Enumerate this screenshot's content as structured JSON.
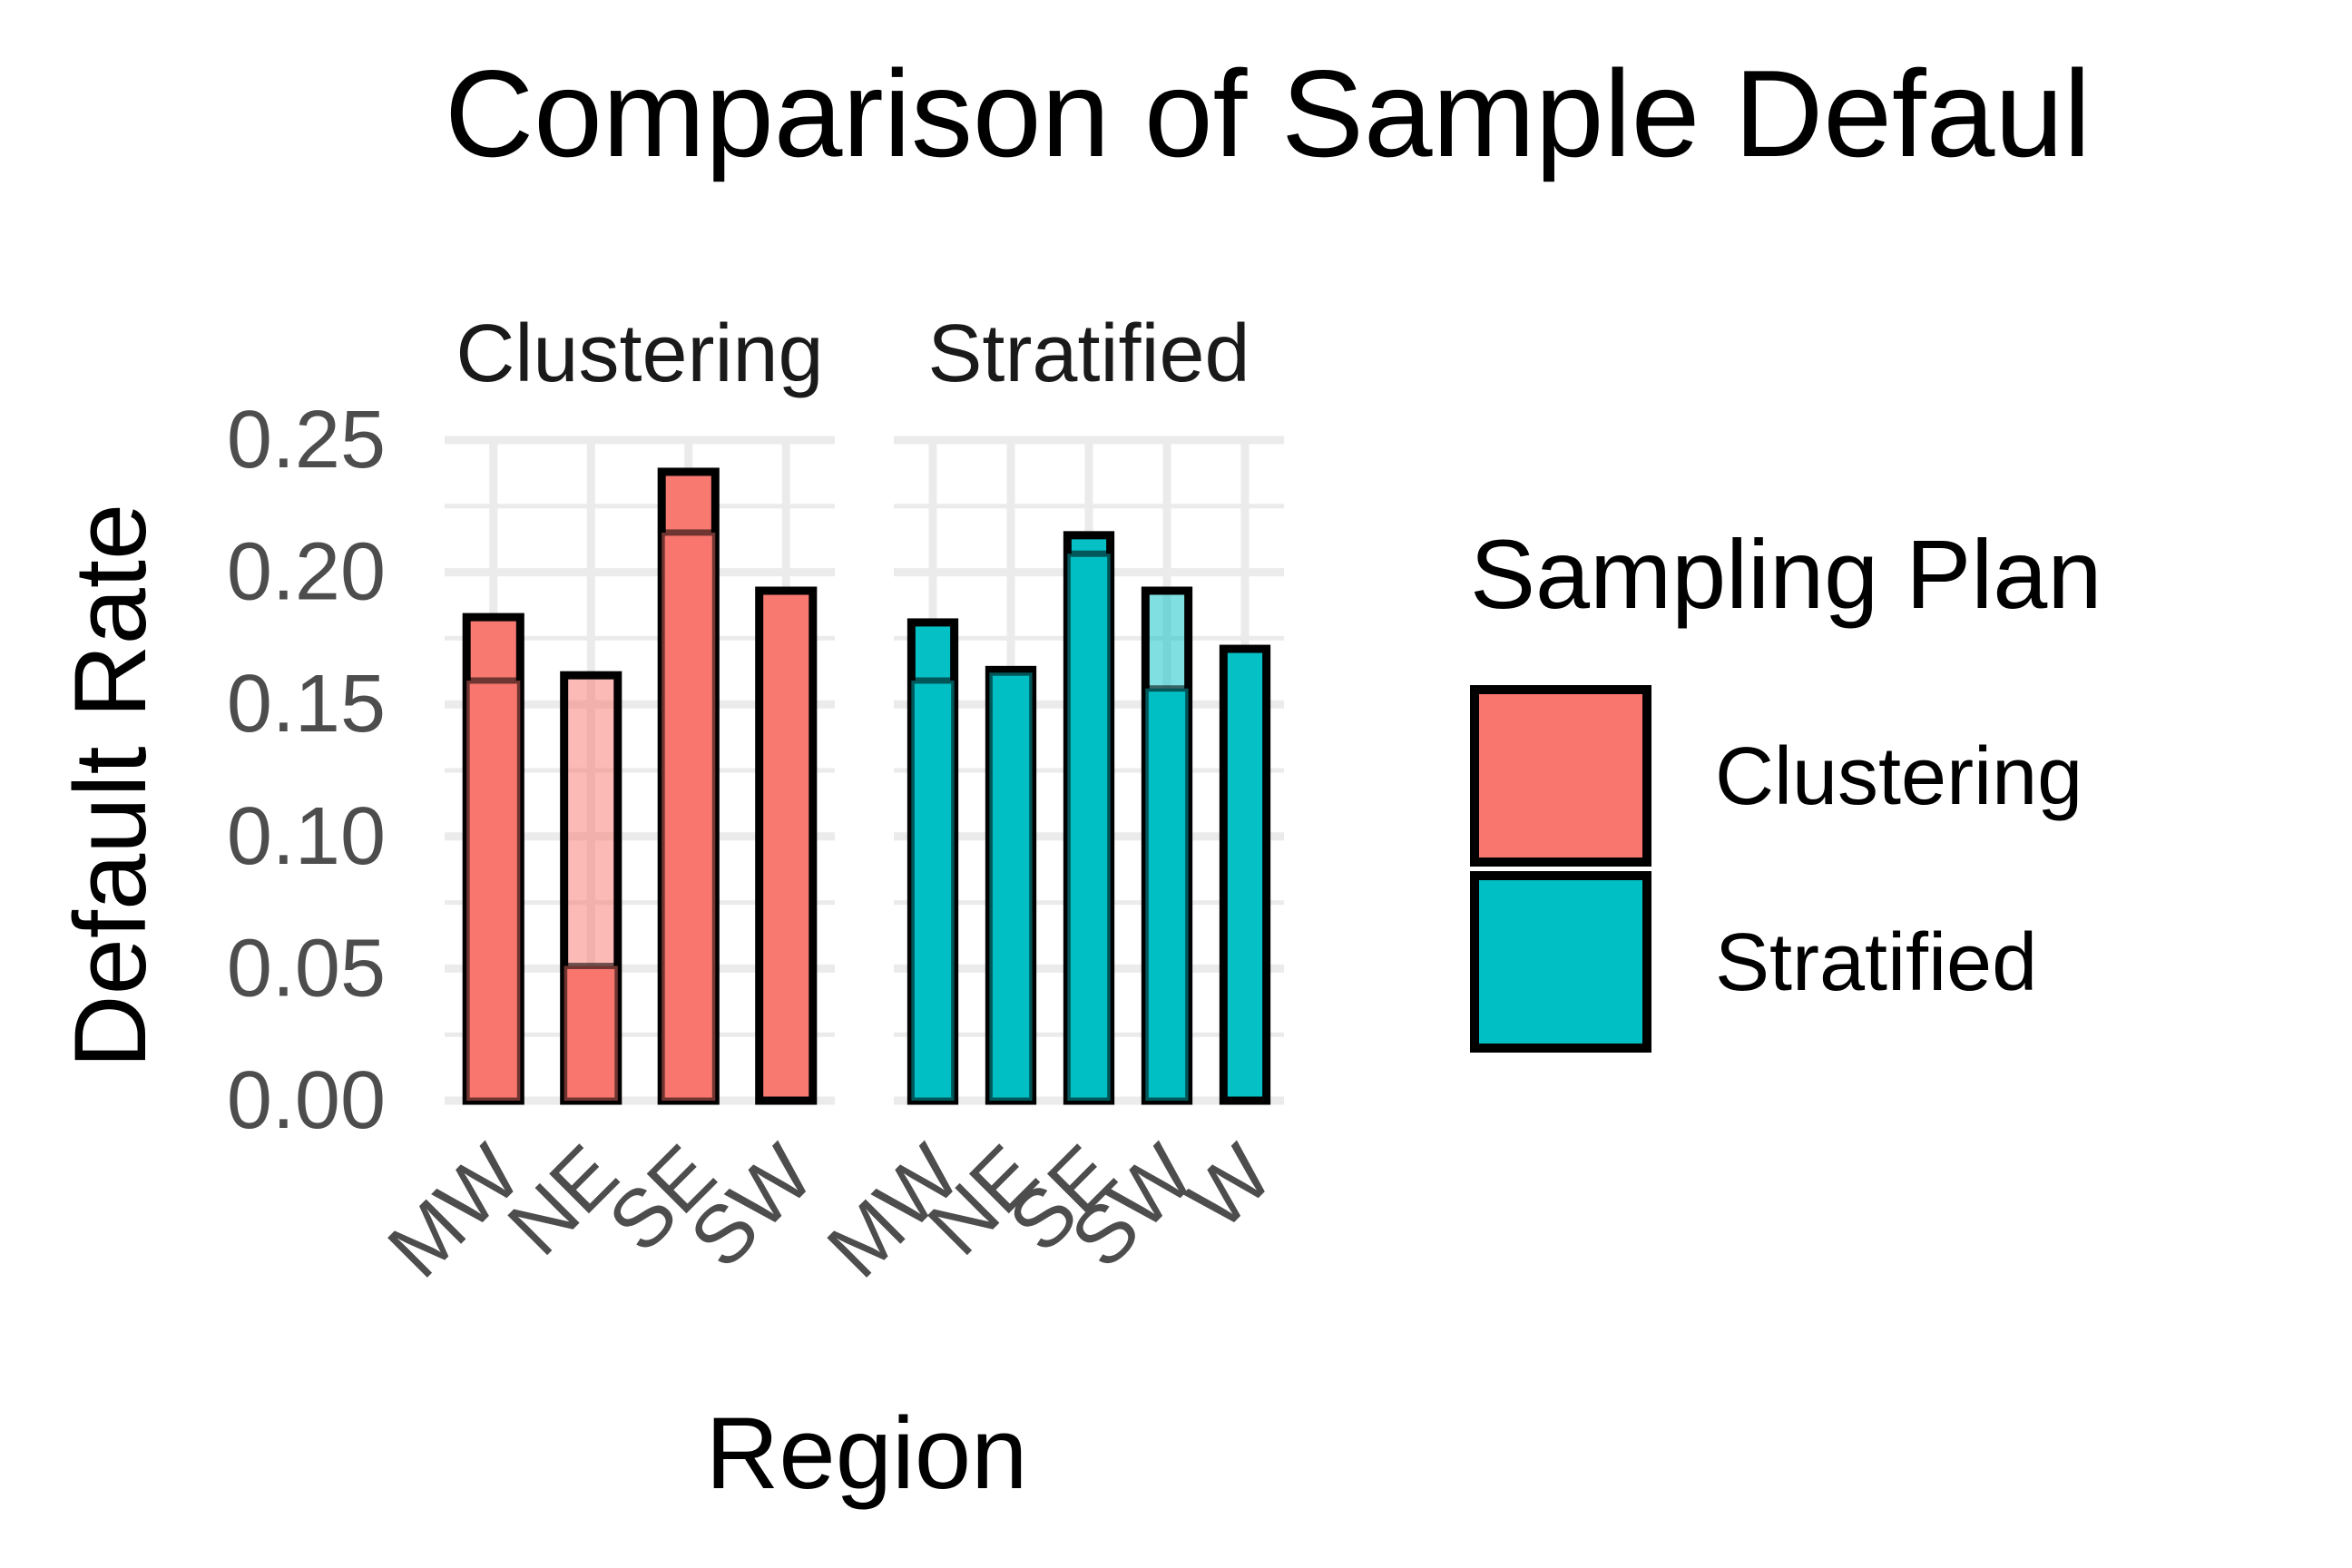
{
  "chart_data": {
    "type": "bar",
    "title": "Comparison of Sample Defaul",
    "xlabel": "Region",
    "ylabel": "Default Rate",
    "ylim": [
      0,
      0.25
    ],
    "yticks": [
      "0.00",
      "0.05",
      "0.10",
      "0.15",
      "0.20",
      "0.25"
    ],
    "grid": true,
    "legend": {
      "title": "Sampling Plan",
      "position": "right",
      "entries": [
        {
          "label": "Clustering",
          "color": "#F8766D"
        },
        {
          "label": "Stratified",
          "color": "#00BFC4"
        }
      ]
    },
    "panels": [
      {
        "strip": "Clustering",
        "series_name": "Clustering",
        "color": "#F8766D",
        "categories": [
          "MW",
          "NE",
          "SE",
          "SW"
        ],
        "values": [
          0.183,
          0.161,
          0.238,
          0.193
        ],
        "overlap_values": [
          0.159,
          0.051,
          0.215,
          null
        ],
        "light": [
          false,
          true,
          false,
          false
        ]
      },
      {
        "strip": "Stratified",
        "series_name": "Stratified",
        "color": "#00BFC4",
        "categories": [
          "MW",
          "NE",
          "SE",
          "SW",
          "W"
        ],
        "values": [
          0.181,
          0.163,
          0.214,
          0.193,
          0.171
        ],
        "overlap_values": [
          0.159,
          0.162,
          0.207,
          0.156,
          null
        ],
        "light": [
          false,
          false,
          false,
          true,
          false
        ]
      }
    ]
  }
}
